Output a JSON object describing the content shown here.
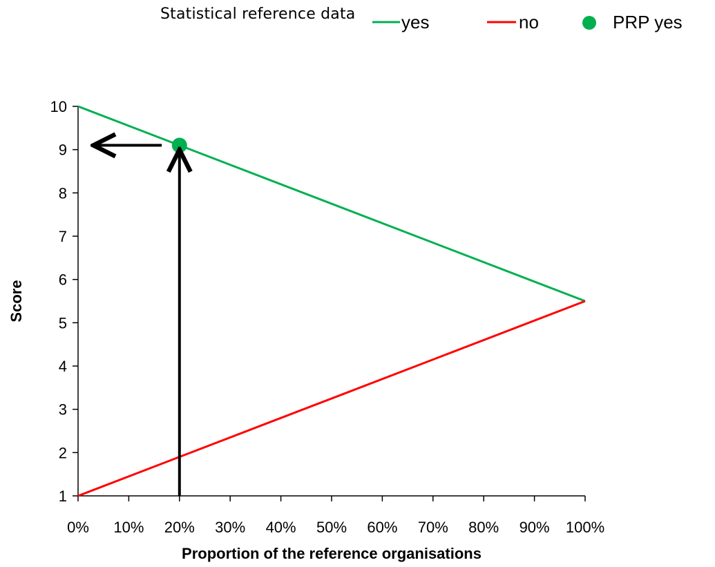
{
  "chart_data": {
    "type": "line",
    "title": "Statistical reference data",
    "xlabel": "Proportion of the reference organisations",
    "ylabel": "Score",
    "xlim": [
      0,
      100
    ],
    "ylim": [
      1,
      10
    ],
    "x_tick_labels": [
      "0%",
      "10%",
      "20%",
      "30%",
      "40%",
      "50%",
      "60%",
      "70%",
      "80%",
      "90%",
      "100%"
    ],
    "y_tick_labels": [
      "1",
      "2",
      "3",
      "4",
      "5",
      "6",
      "7",
      "8",
      "9",
      "10"
    ],
    "grid": false,
    "legend": "top-right",
    "series": [
      {
        "name": "yes",
        "type": "line",
        "color": "#00b050",
        "x": [
          0,
          100
        ],
        "y": [
          10,
          5.5
        ]
      },
      {
        "name": "no",
        "type": "line",
        "color": "#ff0000",
        "x": [
          0,
          100
        ],
        "y": [
          1,
          5.5
        ]
      },
      {
        "name": "PRP yes",
        "type": "scatter",
        "color": "#00b050",
        "x": [
          20
        ],
        "y": [
          9.1
        ]
      }
    ],
    "annotations": [
      {
        "type": "arrow",
        "from": [
          20,
          1
        ],
        "to": [
          20,
          9.0
        ]
      },
      {
        "type": "arrow",
        "from": [
          16.5,
          9.1
        ],
        "to": [
          3,
          9.1
        ]
      }
    ]
  }
}
